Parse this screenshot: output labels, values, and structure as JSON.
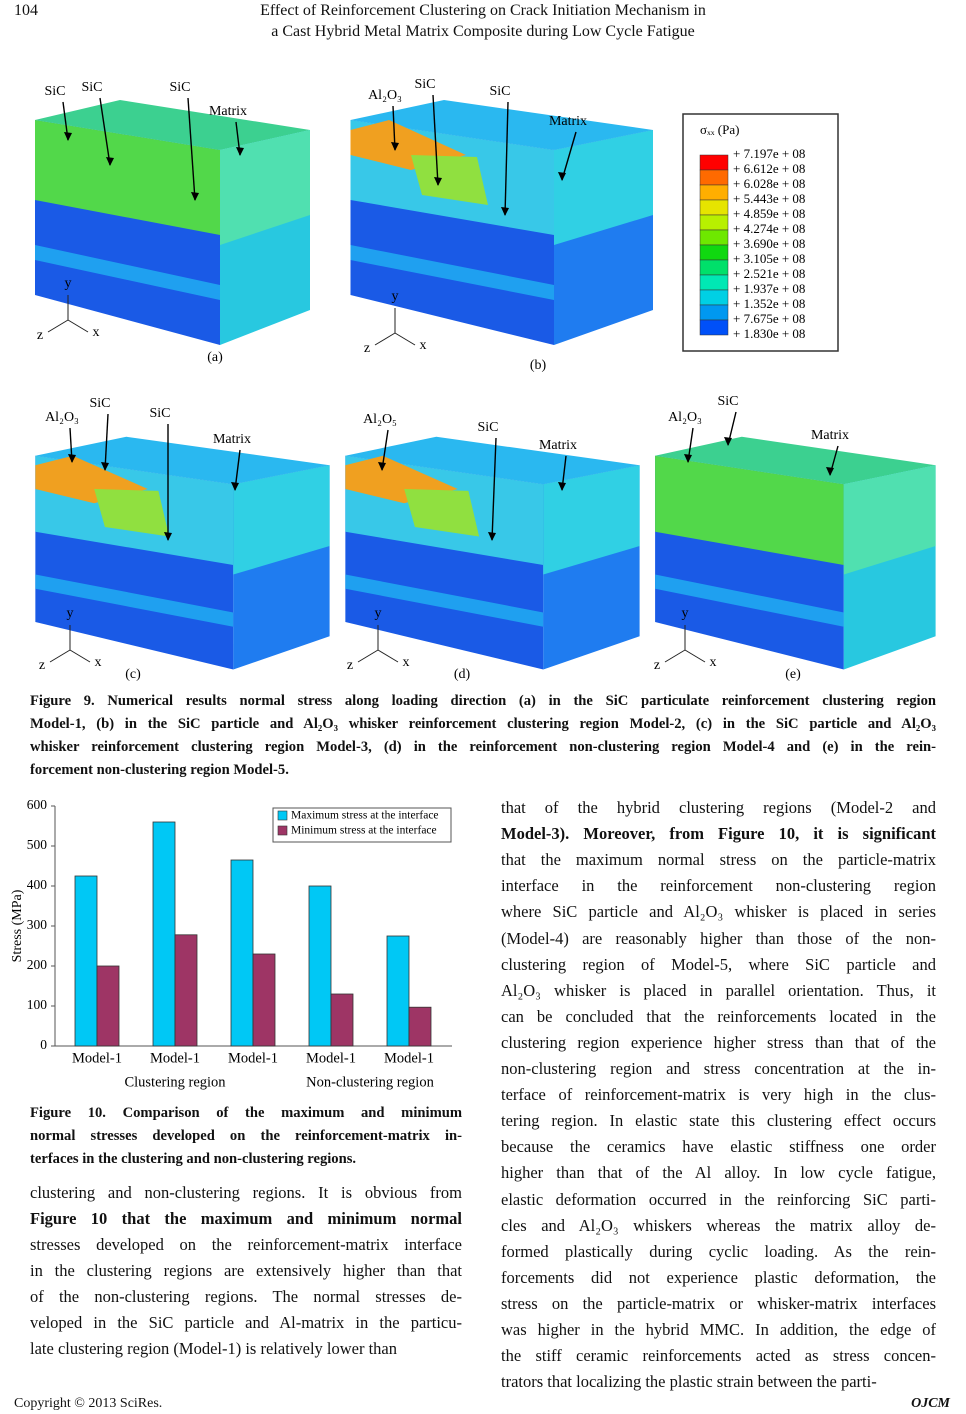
{
  "header": {
    "page_number": "104",
    "title_lines": [
      "Effect of Reinforcement Clustering on Crack Initiation Mechanism in",
      "a Cast Hybrid Metal Matrix Composite during Low Cycle Fatigue"
    ]
  },
  "figure9": {
    "panels": [
      {
        "label": "(a)",
        "axes": [
          "y",
          "z",
          "x"
        ],
        "annotations": [
          "SiC",
          "SiC",
          "SiC",
          "Matrix"
        ]
      },
      {
        "label": "(b)",
        "axes": [
          "y",
          "z",
          "x"
        ],
        "annotations": [
          "Al₂O₃",
          "SiC",
          "SiC",
          "Matrix"
        ]
      },
      {
        "label": "(c)",
        "axes": [
          "y",
          "z",
          "x"
        ],
        "annotations": [
          "Al₂O₃",
          "SiC",
          "SiC",
          "Matrix"
        ]
      },
      {
        "label": "(d)",
        "axes": [
          "y",
          "z",
          "x"
        ],
        "annotations": [
          "Al₂O₅",
          "SiC",
          "Matrix"
        ]
      },
      {
        "label": "(e)",
        "axes": [
          "y",
          "z",
          "x"
        ],
        "annotations": [
          "Al₂O₃",
          "SiC",
          "Matrix"
        ]
      }
    ],
    "legend": {
      "title": "σₓₓ (Pa)",
      "labels": [
        "+ 7.197e + 08",
        "+ 6.612e + 08",
        "+ 6.028e + 08",
        "+ 5.443e + 08",
        "+ 4.859e + 08",
        "+ 4.274e + 08",
        "+ 3.690e + 08",
        "+ 3.105e + 08",
        "+ 2.521e + 08",
        "+ 1.937e + 08",
        "+ 1.352e + 08",
        "+ 7.675e + 08",
        "+ 1.830e + 08"
      ],
      "colors": [
        "#ff0000",
        "#ff6a00",
        "#ffae00",
        "#e6e400",
        "#b8f000",
        "#6ee800",
        "#10d810",
        "#00e06a",
        "#00e8b4",
        "#00d0e4",
        "#0098f0",
        "#0050f8"
      ]
    },
    "caption_lines": [
      "Figure 9. Numerical results normal stress along loading direction (a) in the SiC particulate reinforcement clustering region",
      "Model-1, (b) in the SiC particle and Al₂O₃ whisker reinforcement clustering region Model-2, (c) in the SiC particle and Al₂O₃",
      "whisker reinforcement clustering region Model-3, (d) in the reinforcement non-clustering region Model-4 and (e) in the rein-",
      "forcement non-clustering region Model-5."
    ]
  },
  "chart_data": {
    "type": "bar",
    "y_label": "Stress (MPa)",
    "categories": [
      "Model-1",
      "Model-1",
      "Model-1",
      "Model-1",
      "Model-1"
    ],
    "category_groups": [
      "Clustering region",
      "Non-clustering region"
    ],
    "series": [
      {
        "name": "Maximum stress at the interface",
        "color": "#00c8f5",
        "values": [
          425,
          560,
          465,
          400,
          275
        ]
      },
      {
        "name": "Minimum stress at the interface",
        "color": "#9e3565",
        "values": [
          200,
          278,
          230,
          130,
          97
        ]
      }
    ],
    "ylim": [
      0,
      600
    ],
    "yticks": [
      0,
      100,
      200,
      300,
      400,
      500,
      600
    ],
    "grid": false,
    "legend": "upper right"
  },
  "figure10": {
    "caption_lines": [
      "Figure 10. Comparison of the maximum and minimum",
      "normal stresses developed on the reinforcement-matrix in-",
      "terfaces in the clustering and non-clustering regions."
    ]
  },
  "body": {
    "left_column": [
      "clustering and non-clustering regions. It is obvious from",
      [
        {
          "text": "Figure 10",
          "bold": true
        },
        " that the maximum and minimum normal"
      ],
      "stresses developed on the reinforcement-matrix interface",
      "in the clustering regions are extensively higher than that",
      "of the non-clustering regions. The normal stresses de-",
      "veloped in the SiC particle and Al-matrix in the particu-",
      "late clustering region (Model-1) is relatively lower than"
    ],
    "right_column": [
      "that of the hybrid clustering regions (Model-2 and",
      [
        "Model-3). Moreover, from ",
        {
          "text": "Figure 10",
          "bold": true
        },
        ", it is significant"
      ],
      "that the maximum normal stress on the particle-matrix",
      "interface in the reinforcement non-clustering region",
      "where SiC particle and Al₂O₃ whisker is placed in series",
      "(Model-4) are reasonably higher than those of the non-",
      "clustering region of Model-5, where SiC particle and",
      "Al₂O₃ whisker is placed in parallel orientation. Thus, it",
      "can be concluded that the reinforcements located in the",
      "clustering region experience higher stress than that of the",
      "non-clustering region and stress concentration at the in-",
      "terface of reinforcement-matrix is very high in the clus-",
      "tering region. In elastic state this clustering effect occurs",
      "because the ceramics have elastic stiffness one order",
      "higher than that of the Al alloy. In low cycle fatigue,",
      "elastic deformation occurred in the reinforcing SiC parti-",
      "cles and Al₂O₃ whiskers whereas the matrix alloy de-",
      "formed plastically during cyclic loading. As the rein-",
      "forcements did not experience plastic deformation, the",
      "stress on the particle-matrix or whisker-matrix interfaces",
      "was higher in the hybrid MMC. In addition, the edge of",
      "the stiff ceramic reinforcements acted as stress concen-",
      "trators that localizing the plastic strain between the parti-"
    ]
  },
  "footer": {
    "copyright": "Copyright © 2013 SciRes.",
    "journal": "OJCM"
  }
}
